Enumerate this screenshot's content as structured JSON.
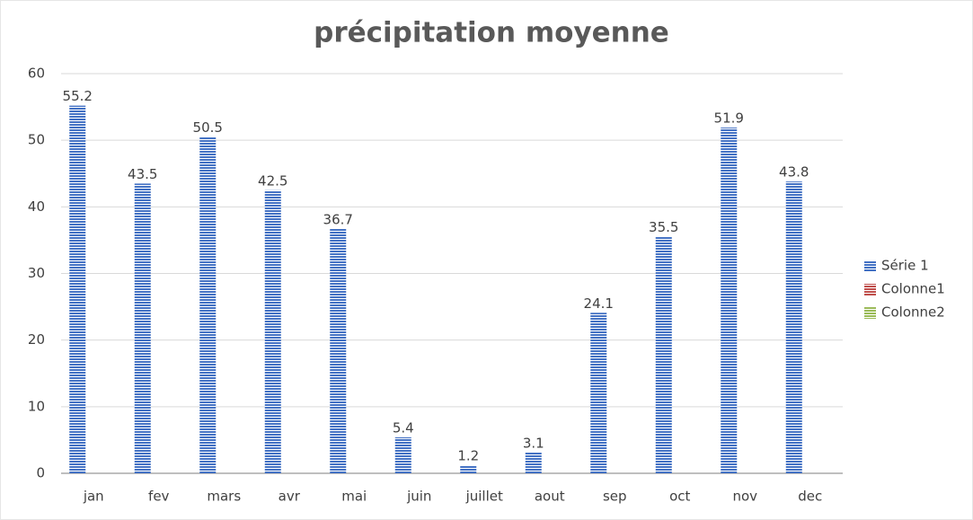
{
  "chart_data": {
    "type": "bar",
    "title": "précipitation moyenne",
    "categories": [
      "jan",
      "fev",
      "mars",
      "avr",
      "mai",
      "juin",
      "juillet",
      "aout",
      "sep",
      "oct",
      "nov",
      "dec"
    ],
    "series": [
      {
        "name": "Série 1",
        "color": "#4472c4",
        "values": [
          55.2,
          43.5,
          50.5,
          42.5,
          36.7,
          5.4,
          1.2,
          3.1,
          24.1,
          35.5,
          51.9,
          43.8
        ]
      },
      {
        "name": "Colonne1",
        "color": "#c0504d",
        "values": [
          null,
          null,
          null,
          null,
          null,
          null,
          null,
          null,
          null,
          null,
          null,
          null
        ]
      },
      {
        "name": "Colonne2",
        "color": "#9bbb59",
        "values": [
          null,
          null,
          null,
          null,
          null,
          null,
          null,
          null,
          null,
          null,
          null,
          null
        ]
      }
    ],
    "ylim": [
      0,
      60
    ],
    "yticks": [
      0,
      10,
      20,
      30,
      40,
      50,
      60
    ],
    "grid": true,
    "legend": "right"
  }
}
